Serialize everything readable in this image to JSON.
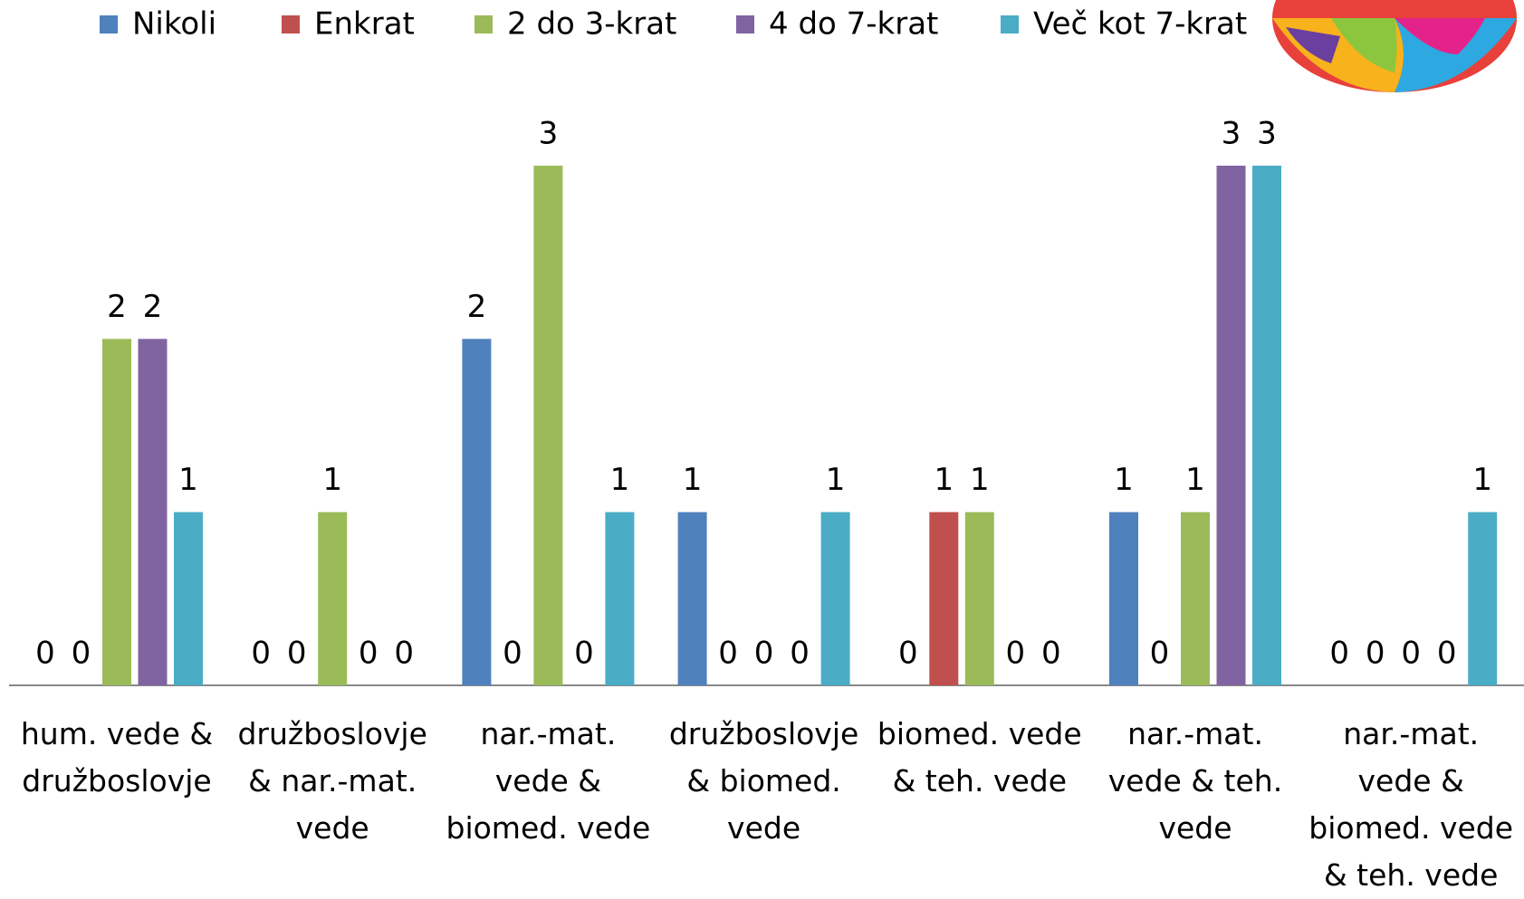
{
  "chart_data": {
    "type": "bar",
    "categories": [
      "hum. vede & družboslovje",
      "družboslovje & nar.-mat. vede",
      "nar.-mat. vede & biomed. vede",
      "družboslovje & biomed. vede",
      "biomed. vede & teh. vede",
      "nar.-mat. vede & teh. vede",
      "nar.-mat. vede & biomed. vede & teh. vede"
    ],
    "series": [
      {
        "name": "Nikoli",
        "color": "#4f81bd",
        "values": [
          0,
          0,
          2,
          1,
          0,
          1,
          0
        ]
      },
      {
        "name": "Enkrat",
        "color": "#c0504d",
        "values": [
          0,
          0,
          0,
          0,
          1,
          0,
          0
        ]
      },
      {
        "name": "2 do 3-krat",
        "color": "#9bbb59",
        "values": [
          2,
          1,
          3,
          0,
          1,
          1,
          0
        ]
      },
      {
        "name": "4 do 7-krat",
        "color": "#8064a2",
        "values": [
          2,
          0,
          0,
          0,
          0,
          3,
          0
        ]
      },
      {
        "name": "Več kot 7-krat",
        "color": "#4bacc6",
        "values": [
          1,
          0,
          1,
          1,
          0,
          3,
          1
        ]
      }
    ],
    "ylim": [
      0,
      3
    ],
    "legend": "top"
  }
}
